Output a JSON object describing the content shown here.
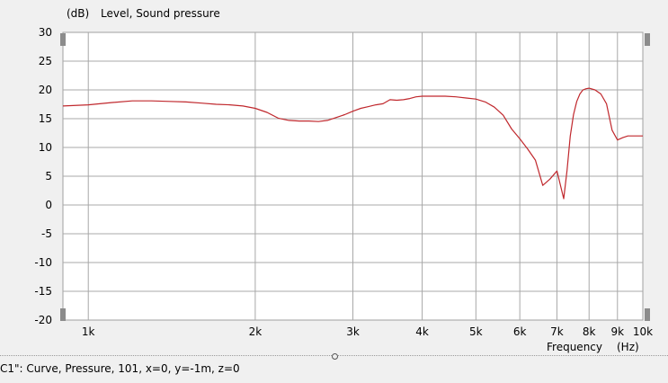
{
  "chart_data": {
    "type": "line",
    "title": "",
    "ylabel": "Level, Sound pressure",
    "yunit": "(dB)",
    "xlabel": "Frequency",
    "xunit": "(Hz)",
    "xscale": "log",
    "xlim": [
      900,
      10000
    ],
    "ylim": [
      -20,
      30
    ],
    "grid": true,
    "line_color": "#c0282d",
    "x_ticks": [
      {
        "value": 1000,
        "label": "1k"
      },
      {
        "value": 2000,
        "label": "2k"
      },
      {
        "value": 3000,
        "label": "3k"
      },
      {
        "value": 4000,
        "label": "4k"
      },
      {
        "value": 5000,
        "label": "5k"
      },
      {
        "value": 6000,
        "label": "6k"
      },
      {
        "value": 7000,
        "label": "7k"
      },
      {
        "value": 8000,
        "label": "8k"
      },
      {
        "value": 9000,
        "label": "9k"
      },
      {
        "value": 10000,
        "label": "10k"
      }
    ],
    "y_ticks": [
      30,
      25,
      20,
      15,
      10,
      5,
      0,
      -5,
      -10,
      -15,
      -20
    ],
    "series": [
      {
        "x": [
          900,
          1000,
          1100,
          1200,
          1300,
          1400,
          1500,
          1600,
          1700,
          1800,
          1900,
          2000,
          2100,
          2200,
          2300,
          2400,
          2500,
          2600,
          2700,
          2800,
          2900,
          3000,
          3100,
          3200,
          3300,
          3400,
          3500,
          3600,
          3700,
          3800,
          3900,
          4000,
          4100,
          4200,
          4400,
          4600,
          4800,
          5000,
          5200,
          5400,
          5600,
          5800,
          6000,
          6200,
          6400,
          6600,
          6800,
          7000,
          7200,
          7300,
          7400,
          7500,
          7600,
          7700,
          7800,
          7900,
          8000,
          8200,
          8400,
          8600,
          8800,
          9000,
          9200,
          9400,
          9600,
          9800,
          10000
        ],
        "y": [
          17.2,
          17.4,
          17.8,
          18.1,
          18.1,
          18.0,
          17.9,
          17.7,
          17.5,
          17.4,
          17.2,
          16.8,
          16.1,
          15.1,
          14.7,
          14.6,
          14.6,
          14.5,
          14.7,
          15.2,
          15.7,
          16.3,
          16.8,
          17.1,
          17.4,
          17.6,
          18.3,
          18.2,
          18.3,
          18.5,
          18.8,
          18.9,
          18.9,
          18.9,
          18.9,
          18.8,
          18.6,
          18.4,
          17.9,
          17.0,
          15.6,
          13.2,
          11.5,
          9.7,
          7.8,
          3.4,
          4.5,
          5.9,
          1.1,
          6.0,
          12.0,
          15.7,
          18.0,
          19.3,
          20.0,
          20.2,
          20.3,
          20.0,
          19.3,
          17.6,
          13.0,
          11.3,
          11.7,
          12.0,
          12.0,
          12.0,
          12.0
        ]
      }
    ]
  },
  "status": {
    "text": "C1\": Curve, Pressure, 101, x=0, y=-1m, z=0"
  }
}
